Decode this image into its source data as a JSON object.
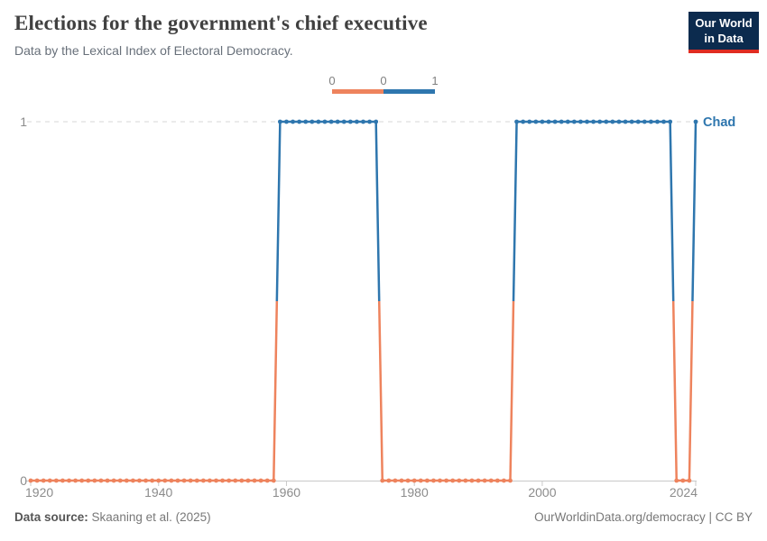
{
  "header": {
    "title": "Elections for the government's chief executive",
    "subtitle": "Data by the Lexical Index of Electoral Democracy."
  },
  "logo": {
    "line1": "Our World",
    "line2": "in Data",
    "bg_color": "#0C2B4E",
    "accent_color": "#E02C21"
  },
  "legend": {
    "tick_labels": [
      "0",
      "0",
      "1"
    ],
    "colors": [
      "#EE835D",
      "#2E76AE"
    ],
    "position": "top-center"
  },
  "chart_data": {
    "type": "line",
    "entity": "Chad",
    "x_domain": [
      1920,
      2024
    ],
    "ylim": [
      0,
      1
    ],
    "x_ticks": [
      1920,
      1940,
      1960,
      1980,
      2000,
      2024
    ],
    "y_ticks": [
      0,
      1
    ],
    "grid": "dashed horizontal gridline at y=1, solid x-axis at y=0",
    "value_colors": {
      "0": "#EE835D",
      "1": "#2E76AE"
    },
    "series": [
      {
        "name": "Chad",
        "label_color": "#2E76AE",
        "segments": [
          {
            "from": 1920,
            "to": 1958,
            "value": 0
          },
          {
            "from": 1959,
            "to": 1974,
            "value": 1
          },
          {
            "from": 1975,
            "to": 1995,
            "value": 0
          },
          {
            "from": 1996,
            "to": 2020,
            "value": 1
          },
          {
            "from": 2021,
            "to": 2023,
            "value": 0
          },
          {
            "from": 2024,
            "to": 2024,
            "value": 1
          }
        ]
      }
    ]
  },
  "footer": {
    "source_label": "Data source:",
    "source_text": "Skaaning et al. (2025)",
    "right_text": "OurWorldinData.org/democracy | CC BY"
  }
}
